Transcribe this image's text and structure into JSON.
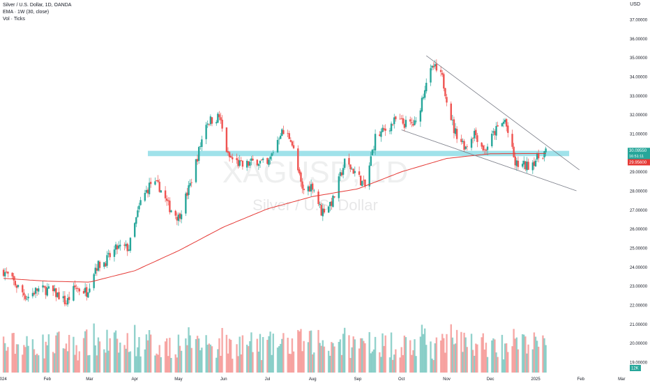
{
  "legend": {
    "symbol": "Silver / U.S. Dollar, 1D, OANDA",
    "ema": "EMA · 1W (30, close)",
    "vol": "Vol · Ticks"
  },
  "currency": "USD",
  "watermark": {
    "ticker": "XAGUSD, 1D",
    "name": "Silver / U.S. Dollar"
  },
  "price_label": {
    "value": "30.09550",
    "countdown": "16:51:11"
  },
  "ema_label": "29.95600",
  "vol_label": "12K",
  "colors": {
    "up": "#26a69a",
    "down": "#ef5350",
    "ema": "#e53935",
    "zone": "#8fdde6",
    "trend": "#787b86"
  },
  "chart_data": {
    "type": "candlestick",
    "title": "Silver / U.S. Dollar, 1D, OANDA",
    "xlabel": "",
    "ylabel": "",
    "ylim": [
      18.45,
      37.22
    ],
    "yticks": [
      "37.00000",
      "36.00000",
      "35.00000",
      "34.00000",
      "33.00000",
      "32.00000",
      "31.00000",
      "29.00000",
      "28.00000",
      "27.00000",
      "26.00000",
      "25.00000",
      "24.00000",
      "23.00000",
      "22.00000",
      "21.00000",
      "20.00000",
      "19.00000"
    ],
    "xtick_labels": [
      "2024",
      "Feb",
      "Mar",
      "Apr",
      "May",
      "Jun",
      "Jul",
      "Aug",
      "Sep",
      "Oct",
      "Nov",
      "Dec",
      "2025",
      "Feb",
      "Mar"
    ],
    "close_anchors": [
      [
        "2024-01-02",
        23.8
      ],
      [
        "2024-01-10",
        23.1
      ],
      [
        "2024-01-18",
        22.4
      ],
      [
        "2024-01-25",
        22.8
      ],
      [
        "2024-02-01",
        22.8
      ],
      [
        "2024-02-09",
        22.5
      ],
      [
        "2024-02-14",
        22.1
      ],
      [
        "2024-02-20",
        22.9
      ],
      [
        "2024-02-28",
        22.7
      ],
      [
        "2024-03-05",
        24.0
      ],
      [
        "2024-03-12",
        24.3
      ],
      [
        "2024-03-20",
        25.0
      ],
      [
        "2024-03-28",
        25.0
      ],
      [
        "2024-04-05",
        27.4
      ],
      [
        "2024-04-12",
        28.4
      ],
      [
        "2024-04-18",
        28.2
      ],
      [
        "2024-04-24",
        27.2
      ],
      [
        "2024-05-01",
        26.6
      ],
      [
        "2024-05-09",
        28.3
      ],
      [
        "2024-05-20",
        31.6
      ],
      [
        "2024-05-29",
        31.9
      ],
      [
        "2024-06-04",
        29.8
      ],
      [
        "2024-06-14",
        29.3
      ],
      [
        "2024-06-24",
        29.6
      ],
      [
        "2024-07-01",
        29.3
      ],
      [
        "2024-07-10",
        31.1
      ],
      [
        "2024-07-17",
        30.8
      ],
      [
        "2024-07-25",
        28.0
      ],
      [
        "2024-08-01",
        28.3
      ],
      [
        "2024-08-07",
        26.9
      ],
      [
        "2024-08-15",
        27.5
      ],
      [
        "2024-08-23",
        29.5
      ],
      [
        "2024-08-30",
        29.0
      ],
      [
        "2024-09-06",
        28.2
      ],
      [
        "2024-09-13",
        30.8
      ],
      [
        "2024-09-20",
        31.2
      ],
      [
        "2024-09-27",
        31.7
      ],
      [
        "2024-10-04",
        31.5
      ],
      [
        "2024-10-11",
        31.5
      ],
      [
        "2024-10-18",
        33.8
      ],
      [
        "2024-10-23",
        34.5
      ],
      [
        "2024-10-29",
        33.9
      ],
      [
        "2024-11-06",
        31.2
      ],
      [
        "2024-11-14",
        30.3
      ],
      [
        "2024-11-20",
        31.1
      ],
      [
        "2024-11-27",
        30.1
      ],
      [
        "2024-12-04",
        31.1
      ],
      [
        "2024-12-11",
        31.7
      ],
      [
        "2024-12-18",
        29.4
      ],
      [
        "2024-12-26",
        29.3
      ],
      [
        "2025-01-02",
        29.7
      ],
      [
        "2025-01-08",
        30.1
      ]
    ],
    "ema_anchors": [
      [
        "2024-01-02",
        23.4
      ],
      [
        "2024-02-01",
        23.25
      ],
      [
        "2024-03-01",
        23.2
      ],
      [
        "2024-04-01",
        23.8
      ],
      [
        "2024-05-01",
        24.85
      ],
      [
        "2024-06-01",
        26.1
      ],
      [
        "2024-07-01",
        27.05
      ],
      [
        "2024-08-01",
        27.7
      ],
      [
        "2024-09-01",
        28.1
      ],
      [
        "2024-10-01",
        29.0
      ],
      [
        "2024-11-01",
        29.7
      ],
      [
        "2024-12-01",
        29.95
      ],
      [
        "2025-01-08",
        29.96
      ]
    ],
    "resistance_zone": [
      29.82,
      30.1
    ],
    "trendlines": [
      {
        "from": [
          "2024-10-18",
          35.1
        ],
        "to": [
          "2025-01-31",
          29.1
        ]
      },
      {
        "from": [
          "2024-10-01",
          31.2
        ],
        "to": [
          "2025-01-29",
          28.0
        ]
      }
    ]
  }
}
